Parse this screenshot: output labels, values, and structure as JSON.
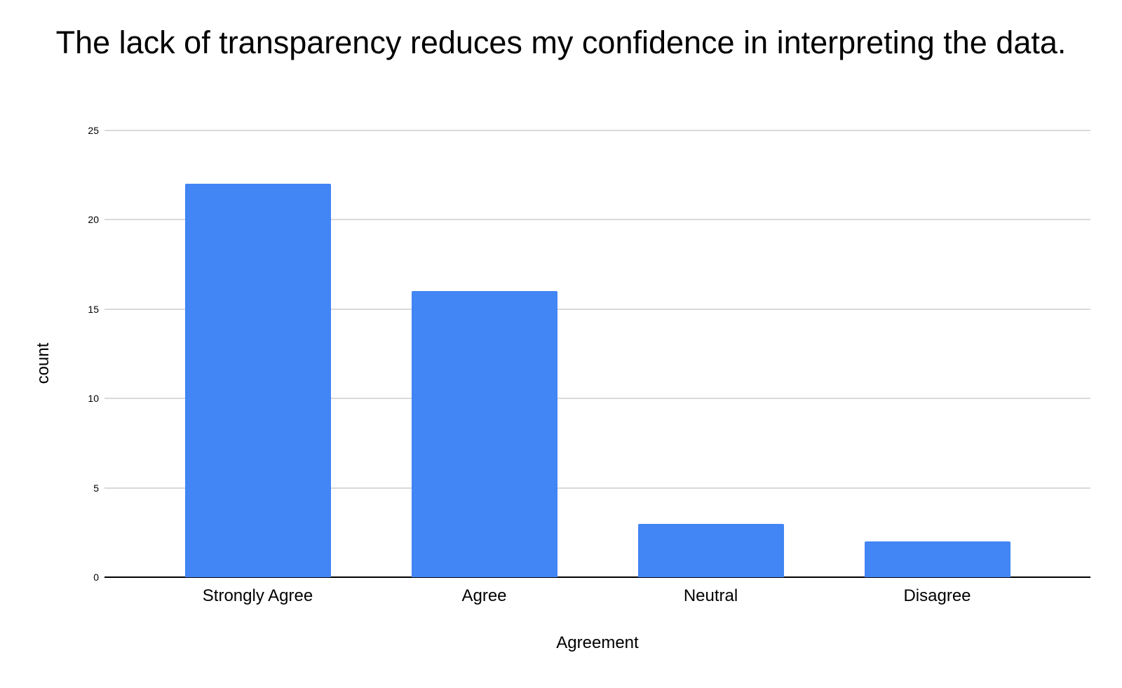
{
  "chart_data": {
    "type": "bar",
    "title": "The lack of transparency reduces my confidence in interpreting the data.",
    "categories": [
      "Strongly Agree",
      "Agree",
      "Neutral",
      "Disagree"
    ],
    "values": [
      22,
      16,
      3,
      2
    ],
    "xlabel": "Agreement",
    "ylabel": "count",
    "ylim": [
      0,
      25
    ],
    "yticks": [
      0,
      5,
      10,
      15,
      20,
      25
    ],
    "grid": "horizontal",
    "legend": "none",
    "colors": {
      "bar": "#4285f4",
      "gridline": "#d9d9d9",
      "axis_line": "#000000",
      "text": "#000000",
      "background": "#ffffff"
    }
  }
}
